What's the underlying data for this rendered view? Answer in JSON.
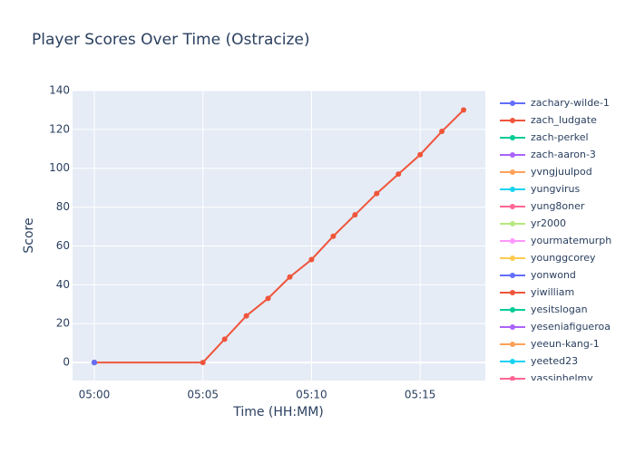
{
  "chart_data": {
    "type": "line",
    "title": "Player Scores Over Time (Ostracize)",
    "x_label": "Time (HH:MM)",
    "y_label": "Score",
    "xlim": [
      "04:59",
      "05:18"
    ],
    "xticks": [
      "05:00",
      "05:05",
      "05:10",
      "05:15"
    ],
    "ylim": [
      -9.3,
      140
    ],
    "yticks": [
      0,
      20,
      40,
      60,
      80,
      100,
      120,
      140
    ],
    "grid": true,
    "series": [
      {
        "name": "zachary-wilde-1",
        "color": "#636efa",
        "x": [
          "05:00"
        ],
        "values": [
          0
        ]
      },
      {
        "name": "zach_ludgate",
        "color": "#EF553B",
        "x": [
          "05:00",
          "05:05",
          "05:06",
          "05:07",
          "05:08",
          "05:09",
          "05:10",
          "05:11",
          "05:12",
          "05:13",
          "05:14",
          "05:15",
          "05:16",
          "05:17"
        ],
        "values": [
          0,
          0,
          12,
          24,
          33,
          44,
          53,
          65,
          76,
          87,
          97,
          107,
          119,
          130
        ]
      },
      {
        "name": "zach-perkel",
        "color": "#00cc96",
        "x": [
          "05:00"
        ],
        "values": [
          0
        ]
      },
      {
        "name": "zach-aaron-3",
        "color": "#ab63fa",
        "x": [
          "05:00"
        ],
        "values": [
          0
        ]
      },
      {
        "name": "yvngjuulpod",
        "color": "#FFA15A",
        "x": [
          "05:00"
        ],
        "values": [
          0
        ]
      },
      {
        "name": "yungvirus",
        "color": "#19d3f3",
        "x": [
          "05:00"
        ],
        "values": [
          0
        ]
      },
      {
        "name": "yung8oner",
        "color": "#FF6692",
        "x": [
          "05:00"
        ],
        "values": [
          0
        ]
      },
      {
        "name": "yr2000",
        "color": "#B6E880",
        "x": [
          "05:00"
        ],
        "values": [
          0
        ]
      },
      {
        "name": "yourmatemurph",
        "color": "#FF97FF",
        "x": [
          "05:00"
        ],
        "values": [
          0
        ]
      },
      {
        "name": "younggcorey",
        "color": "#FECB52",
        "x": [
          "05:00"
        ],
        "values": [
          0
        ]
      },
      {
        "name": "yonwond",
        "color": "#636efa",
        "x": [
          "05:00"
        ],
        "values": [
          0
        ]
      },
      {
        "name": "yiwilliam",
        "color": "#EF553B",
        "x": [
          "05:00"
        ],
        "values": [
          0
        ]
      },
      {
        "name": "yesitslogan",
        "color": "#00cc96",
        "x": [
          "05:00"
        ],
        "values": [
          0
        ]
      },
      {
        "name": "yeseniafigueroa",
        "color": "#ab63fa",
        "x": [
          "05:00"
        ],
        "values": [
          0
        ]
      },
      {
        "name": "yeeun-kang-1",
        "color": "#FFA15A",
        "x": [
          "05:00"
        ],
        "values": [
          0
        ]
      },
      {
        "name": "yeeted23",
        "color": "#19d3f3",
        "x": [
          "05:00"
        ],
        "values": [
          0
        ]
      },
      {
        "name": "yassinhelmy",
        "color": "#FF6692",
        "x": [
          "05:00"
        ],
        "values": [
          0
        ]
      }
    ]
  }
}
